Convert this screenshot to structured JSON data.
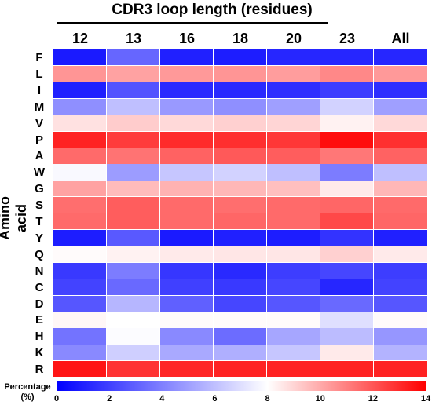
{
  "chart_data": {
    "type": "heatmap",
    "title": "CDR3 loop length (residues)",
    "x_categories": [
      "12",
      "13",
      "16",
      "18",
      "20",
      "23",
      "All"
    ],
    "y_categories": [
      "F",
      "L",
      "I",
      "M",
      "V",
      "P",
      "A",
      "W",
      "G",
      "S",
      "T",
      "Y",
      "Q",
      "N",
      "C",
      "D",
      "E",
      "H",
      "K",
      "R"
    ],
    "ylabel": "Amino acid",
    "values": [
      [
        0.8,
        3.2,
        1.0,
        0.9,
        1.2,
        1.2,
        1.2
      ],
      [
        10.5,
        10.2,
        10.4,
        10.5,
        10.3,
        10.8,
        10.4
      ],
      [
        1.0,
        2.6,
        1.3,
        1.3,
        1.4,
        1.9,
        1.4
      ],
      [
        4.5,
        6.0,
        4.8,
        4.5,
        5.0,
        6.6,
        5.0
      ],
      [
        8.7,
        9.2,
        8.9,
        9.1,
        9.0,
        8.3,
        8.9
      ],
      [
        13.2,
        12.6,
        13.0,
        12.9,
        12.7,
        13.7,
        12.9
      ],
      [
        11.5,
        11.3,
        11.7,
        11.9,
        11.8,
        11.2,
        11.7
      ],
      [
        7.8,
        4.9,
        6.2,
        6.6,
        6.0,
        3.9,
        6.0
      ],
      [
        10.2,
        9.6,
        9.8,
        9.7,
        9.5,
        8.5,
        9.7
      ],
      [
        11.4,
        11.8,
        11.5,
        11.4,
        11.5,
        11.6,
        11.5
      ],
      [
        11.5,
        11.8,
        11.5,
        11.6,
        11.5,
        12.3,
        11.6
      ],
      [
        0.9,
        2.8,
        0.8,
        1.0,
        0.9,
        1.6,
        1.0
      ],
      [
        8.1,
        8.3,
        8.5,
        8.6,
        8.6,
        9.1,
        8.5
      ],
      [
        1.8,
        3.9,
        1.7,
        1.3,
        1.9,
        2.2,
        1.9
      ],
      [
        2.1,
        3.3,
        2.0,
        1.8,
        2.2,
        1.2,
        2.1
      ],
      [
        2.7,
        5.7,
        3.0,
        2.2,
        2.7,
        3.3,
        2.7
      ],
      [
        8.2,
        8.0,
        8.1,
        8.1,
        8.1,
        7.0,
        8.1
      ],
      [
        3.6,
        7.9,
        4.3,
        3.4,
        5.2,
        5.9,
        4.7
      ],
      [
        4.3,
        6.5,
        5.3,
        5.5,
        6.2,
        8.5,
        5.6
      ],
      [
        13.5,
        12.8,
        13.1,
        13.2,
        13.2,
        13.2,
        13.2
      ]
    ],
    "colorbar": {
      "label": "Percentage (%)",
      "label_lines": [
        "Percentage",
        "(%)"
      ],
      "min": 0,
      "mid": 8,
      "max": 14,
      "ticks": [
        "0",
        "2",
        "4",
        "6",
        "8",
        "10",
        "12",
        "14"
      ],
      "colors": {
        "low": "#0000ff",
        "mid": "#ffffff",
        "high": "#ff0000"
      }
    }
  }
}
